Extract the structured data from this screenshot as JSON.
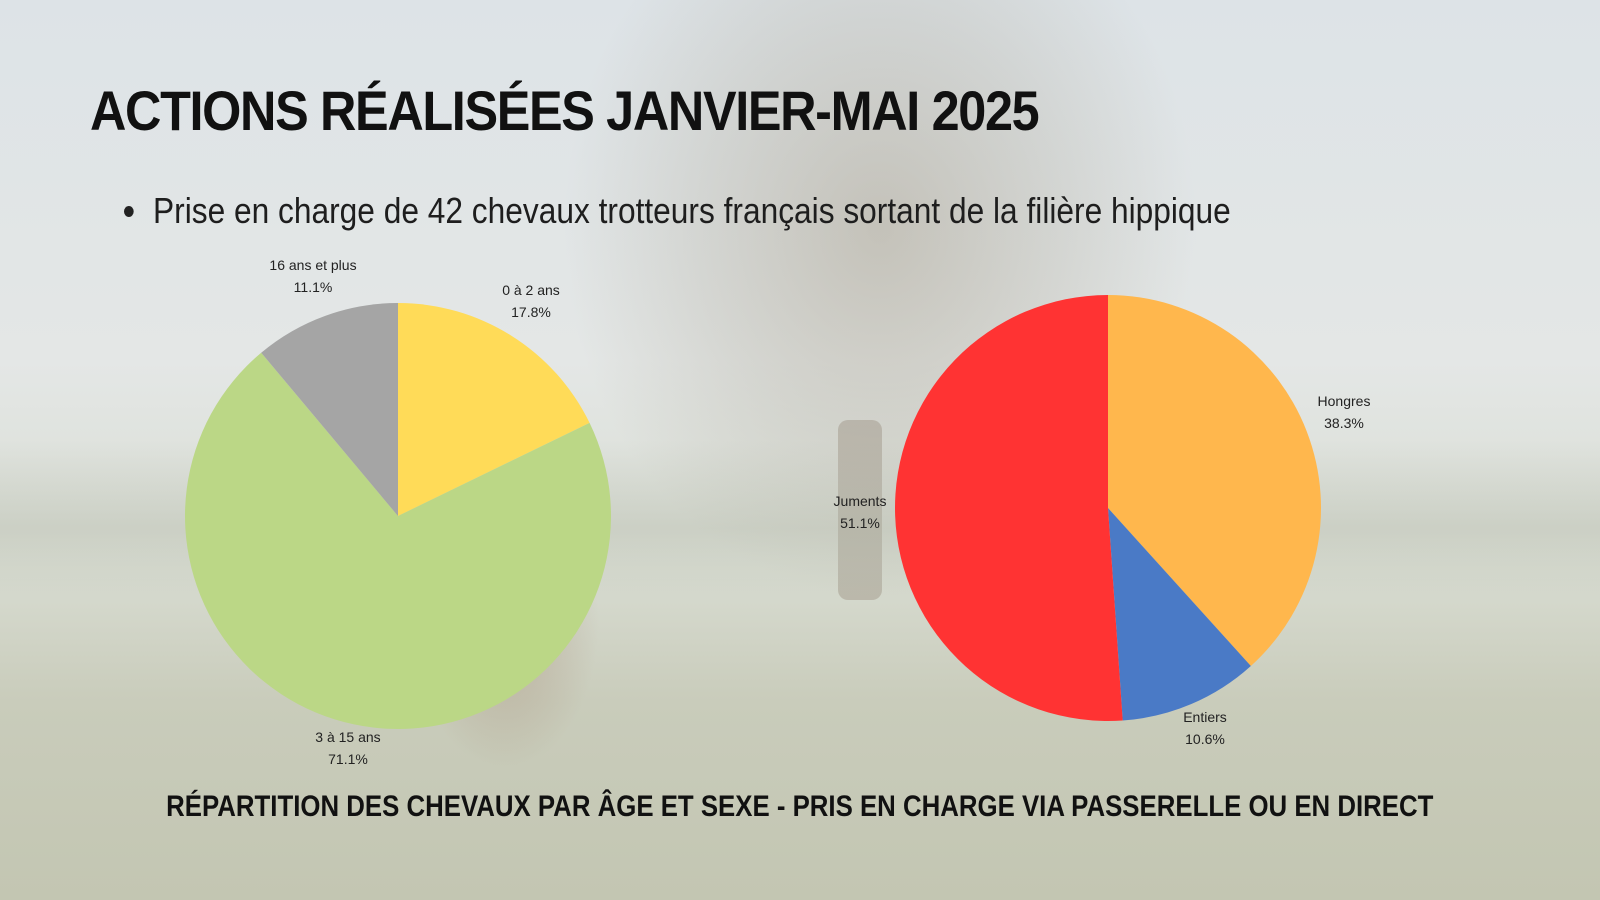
{
  "slide": {
    "title": "ACTIONS RÉALISÉES JANVIER-MAI 2025",
    "bullet": "Prise en charge de 42 chevaux trotteurs français sortant de la filière hippique",
    "caption": "RÉPARTITION DES CHEVAUX PAR ÂGE ET SEXE - PRIS EN CHARGE VIA PASSERELLE OU EN DIRECT"
  },
  "chart_data": [
    {
      "type": "pie",
      "title": "",
      "slices": [
        {
          "label": "0 à 2 ans",
          "value": 17.8,
          "display": "17.8%",
          "color": "#FFDB58"
        },
        {
          "label": "3 à 15 ans",
          "value": 71.1,
          "display": "71.1%",
          "color": "#BBD786"
        },
        {
          "label": "16 ans et plus",
          "value": 11.1,
          "display": "11.1%",
          "color": "#A5A5A5"
        }
      ]
    },
    {
      "type": "pie",
      "title": "",
      "slices": [
        {
          "label": "Hongres",
          "value": 38.3,
          "display": "38.3%",
          "color": "#FFB74D"
        },
        {
          "label": "Entiers",
          "value": 10.6,
          "display": "10.6%",
          "color": "#4A7AC6"
        },
        {
          "label": "Juments",
          "value": 51.1,
          "display": "51.1%",
          "color": "#FF3333"
        }
      ]
    }
  ]
}
